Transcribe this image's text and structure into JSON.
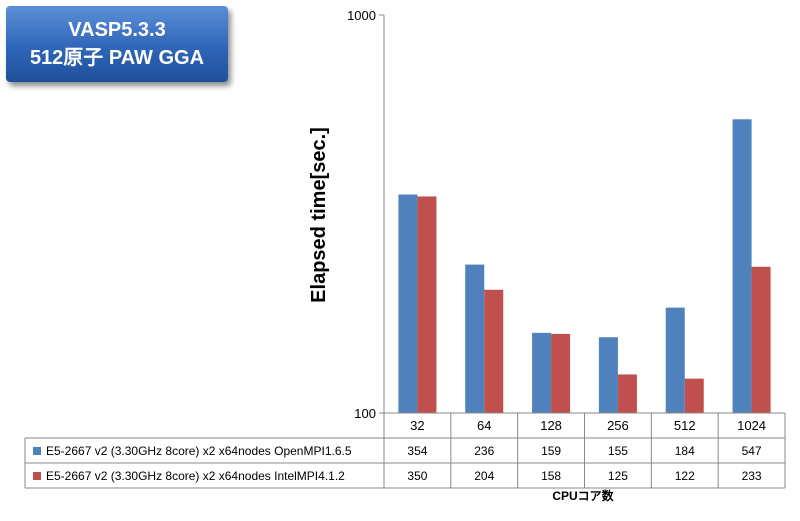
{
  "title_box": {
    "line1": "VASP5.3.3",
    "line2": "512原子 PAW GGA"
  },
  "colors": {
    "series1": "#4f81bd",
    "series2": "#c0504d",
    "title_box": "#2f66b8"
  },
  "chart_data": {
    "type": "bar",
    "ylabel": "Elapsed time[sec.]",
    "xlabel": "CPUコア数",
    "yscale": "log",
    "ylim": [
      100,
      1000
    ],
    "yticks": [
      "100",
      "1000"
    ],
    "categories": [
      "32",
      "64",
      "128",
      "256",
      "512",
      "1024"
    ],
    "series": [
      {
        "name": "E5-2667 v2 (3.30GHz 8core) x2 x64nodes OpenMPI1.6.5",
        "values": [
          354,
          236,
          159,
          155,
          184,
          547
        ]
      },
      {
        "name": "E5-2667 v2 (3.30GHz 8core) x2 x64nodes IntelMPI4.1.2",
        "values": [
          350,
          204,
          158,
          125,
          122,
          233
        ]
      }
    ],
    "legend": "data-table"
  }
}
